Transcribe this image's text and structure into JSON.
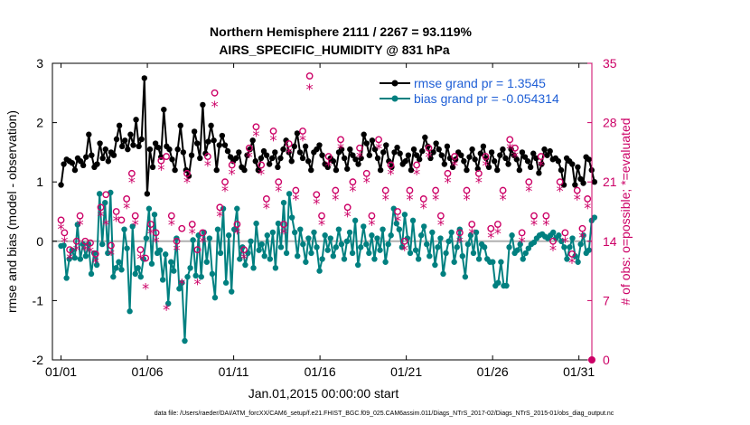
{
  "chart_data": {
    "type": "line",
    "title_line1": "Northern Hemisphere 2111 / 2267 = 93.119%",
    "title_line2": "AIRS_SPECIFIC_HUMIDITY @ 831 hPa",
    "xlabel": "Jan.01,2015 00:00:00 start",
    "ylabel": "rmse and bias (model - observation)",
    "ylabel_right": "# of obs: o=possible; *=evaluated",
    "footnote": "data file: /Users/raeder/DAI/ATM_forcXX/CAM6_setup/f.e21.FHIST_BGC.f09_025.CAM6assim.011/Diags_NTrS_2017-02/Diags_NTrS_2015-01/obs_diag_output.nc",
    "xlim": [
      0.5,
      31.75
    ],
    "ylim": [
      -2,
      3
    ],
    "ylim_right": [
      0,
      35
    ],
    "x_ticks": [
      1,
      6,
      11,
      16,
      21,
      26,
      31
    ],
    "x_tick_labels": [
      "01/01",
      "01/06",
      "01/11",
      "01/16",
      "01/21",
      "01/26",
      "01/31"
    ],
    "y_ticks": [
      -2,
      -1,
      0,
      1,
      2,
      3
    ],
    "y_tick_labels": [
      "-2",
      "-1",
      "0",
      "1",
      "2",
      "3"
    ],
    "y_right_ticks": [
      0,
      7,
      14,
      21,
      28,
      35
    ],
    "y_right_tick_labels": [
      "0",
      "7",
      "14",
      "21",
      "28",
      "35"
    ],
    "series": [
      {
        "name": "rmse",
        "legend": "rmse grand pr = 1.3545",
        "color": "#000000",
        "values": [
          0.95,
          1.3,
          1.38,
          1.35,
          1.32,
          1.2,
          1.4,
          1.35,
          1.28,
          1.42,
          1.8,
          1.45,
          1.25,
          1.3,
          1.65,
          1.4,
          1.55,
          1.35,
          1.5,
          1.45,
          1.72,
          1.95,
          1.6,
          1.7,
          1.55,
          1.8,
          1.62,
          2.05,
          1.6,
          1.72,
          2.75,
          0.8,
          1.55,
          1.25,
          1.65,
          1.58,
          1.42,
          2.22,
          1.6,
          1.55,
          1.38,
          1.2,
          1.55,
          1.95,
          1.5,
          1.2,
          1.1,
          1.45,
          1.85,
          1.65,
          1.4,
          2.3,
          1.48,
          1.68,
          1.95,
          1.7,
          1.2,
          1.62,
          1.78,
          1.62,
          1.52,
          1.42,
          1.35,
          1.4,
          1.5,
          1.25,
          1.2,
          1.45,
          1.55,
          1.7,
          1.35,
          1.2,
          1.4,
          1.52,
          1.45,
          1.3,
          1.4,
          1.5,
          1.25,
          1.4,
          1.55,
          1.7,
          1.5,
          1.35,
          1.6,
          1.82,
          1.5,
          1.4,
          1.6,
          1.35,
          1.2,
          1.5,
          1.55,
          1.62,
          1.45,
          1.3,
          1.25,
          1.4,
          1.35,
          1.2,
          1.5,
          1.55,
          1.4,
          1.22,
          1.55,
          1.45,
          1.38,
          1.3,
          1.4,
          1.8,
          1.65,
          1.45,
          1.7,
          1.55,
          1.4,
          1.2,
          1.5,
          1.62,
          1.35,
          1.25,
          1.5,
          1.58,
          1.48,
          1.3,
          1.35,
          1.45,
          1.2,
          1.55,
          1.45,
          1.38,
          1.52,
          1.75,
          1.6,
          1.4,
          1.5,
          1.65,
          1.55,
          1.45,
          1.3,
          1.6,
          1.4,
          1.25,
          1.38,
          1.5,
          1.45,
          1.35,
          1.2,
          1.42,
          1.55,
          1.38,
          1.22,
          1.48,
          1.6,
          1.4,
          1.25,
          1.5,
          1.35,
          1.2,
          1.45,
          1.55,
          1.4,
          1.3,
          1.55,
          1.45,
          1.38,
          1.2,
          1.5,
          1.42,
          1.35,
          1.25,
          1.48,
          1.4,
          1.15,
          1.3,
          1.55,
          1.45,
          1.52,
          1.38,
          1.4,
          1.35,
          1.2,
          0.95,
          1.4,
          1.35,
          1.3,
          0.95,
          1.25,
          1.05,
          0.98,
          1.42,
          1.38,
          1.2,
          1.0
        ],
        "values_note": "daily-ish samples, 6-hourly cadence; see x"
      },
      {
        "name": "bias",
        "legend": "bias grand pr = -0.054314",
        "color": "#008080",
        "values": [
          -0.08,
          -0.07,
          -0.62,
          -0.3,
          -0.15,
          -0.28,
          0.28,
          -0.3,
          -0.05,
          -0.25,
          -0.05,
          -0.55,
          -0.2,
          -0.4,
          0.8,
          -0.05,
          0.65,
          -0.2,
          0.82,
          -0.6,
          -0.45,
          -0.35,
          -0.48,
          0.2,
          -0.12,
          -1.18,
          0.25,
          -0.55,
          -0.45,
          -0.6,
          -0.3,
          0.05,
          0.55,
          -0.38,
          0.45,
          -0.2,
          -0.15,
          -0.65,
          -0.22,
          -1.05,
          -0.35,
          -0.5,
          0.05,
          -0.8,
          -0.7,
          -1.68,
          -0.6,
          -0.45,
          0.02,
          -0.58,
          0.1,
          -0.6,
          0.15,
          -0.35,
          0.05,
          -0.55,
          -0.95,
          0.2,
          -0.2,
          0.55,
          -0.7,
          0.1,
          -0.85,
          0.2,
          0.55,
          -0.3,
          -0.1,
          -0.4,
          -0.2,
          0.0,
          -0.45,
          0.3,
          -0.15,
          -0.05,
          -0.25,
          0.1,
          -0.3,
          0.15,
          -0.45,
          0.3,
          -0.1,
          0.65,
          -0.2,
          0.8,
          0.4,
          0.15,
          -0.25,
          0.2,
          -0.05,
          -0.35,
          0.05,
          -0.2,
          0.15,
          -0.1,
          -0.5,
          -0.3,
          0.1,
          -0.15,
          0.05,
          -0.25,
          -0.1,
          0.2,
          -0.05,
          -0.3,
          0.0,
          0.15,
          -0.2,
          0.35,
          -0.4,
          -0.1,
          0.25,
          -0.05,
          -0.2,
          0.1,
          -0.3,
          0.05,
          -0.15,
          0.2,
          -0.35,
          -0.05,
          0.1,
          0.55,
          0.3,
          0.2,
          -0.1,
          0.45,
          0.05,
          -0.2,
          0.35,
          -0.15,
          -0.3,
          0.1,
          0.25,
          -0.05,
          -0.25,
          0.15,
          -0.4,
          -0.1,
          0.05,
          -0.55,
          -0.2,
          0.0,
          0.15,
          -0.35,
          -0.1,
          0.2,
          -0.25,
          -0.6,
          -0.05,
          0.1,
          -0.2,
          0.15,
          -0.3,
          -0.05,
          -0.1,
          -0.3,
          -0.35,
          -0.35,
          -0.75,
          -0.7,
          -0.35,
          -0.75,
          -0.75,
          -0.1,
          0.1,
          -0.2,
          -0.15,
          -0.05,
          -0.3,
          -0.2,
          -0.12,
          -0.05,
          -0.02,
          0.05,
          0.1,
          0.12,
          0.08,
          0.05,
          0.1,
          0.15,
          0.05,
          0.1,
          0.0,
          -0.1,
          -0.3,
          -0.1,
          0.05,
          -0.25,
          -0.35,
          -0.05,
          0.1,
          -0.2,
          -0.15,
          0.35,
          0.4
        ]
      }
    ],
    "obs_possible": {
      "marker": "o",
      "color": "#cc0066",
      "points": [
        [
          1.0,
          16.5
        ],
        [
          1.2,
          15
        ],
        [
          1.5,
          13
        ],
        [
          1.9,
          14
        ],
        [
          2.1,
          17
        ],
        [
          2.4,
          14
        ],
        [
          2.7,
          13.8
        ],
        [
          3.0,
          12.5
        ],
        [
          3.3,
          18
        ],
        [
          3.6,
          19.5
        ],
        [
          3.9,
          13.5
        ],
        [
          4.2,
          17.5
        ],
        [
          4.5,
          16.5
        ],
        [
          4.8,
          19
        ],
        [
          5.1,
          22
        ],
        [
          5.3,
          17
        ],
        [
          5.6,
          13
        ],
        [
          5.9,
          12
        ],
        [
          6.2,
          16
        ],
        [
          6.5,
          15
        ],
        [
          6.8,
          23.5
        ],
        [
          7.1,
          24
        ],
        [
          7.4,
          17
        ],
        [
          7.7,
          14
        ],
        [
          8.0,
          15.5
        ],
        [
          8.3,
          22
        ],
        [
          8.6,
          16
        ],
        [
          8.9,
          13
        ],
        [
          9.2,
          15
        ],
        [
          9.5,
          24
        ],
        [
          9.9,
          31.5
        ],
        [
          10.2,
          18
        ],
        [
          10.5,
          21
        ],
        [
          10.9,
          23
        ],
        [
          11.2,
          16
        ],
        [
          11.6,
          13
        ],
        [
          11.9,
          25
        ],
        [
          12.3,
          27.5
        ],
        [
          12.6,
          23
        ],
        [
          12.9,
          19
        ],
        [
          13.3,
          27
        ],
        [
          13.6,
          21
        ],
        [
          13.9,
          16
        ],
        [
          14.2,
          25.5
        ],
        [
          14.6,
          20
        ],
        [
          15.0,
          27
        ],
        [
          15.4,
          33.5
        ],
        [
          15.8,
          19.5
        ],
        [
          16.1,
          17
        ],
        [
          16.5,
          24
        ],
        [
          16.9,
          20
        ],
        [
          17.2,
          26
        ],
        [
          17.6,
          18
        ],
        [
          17.9,
          21
        ],
        [
          18.3,
          25
        ],
        [
          18.7,
          22
        ],
        [
          19.0,
          17
        ],
        [
          19.4,
          26
        ],
        [
          19.8,
          20
        ],
        [
          20.1,
          23
        ],
        [
          20.5,
          17.5
        ],
        [
          20.9,
          14
        ],
        [
          21.2,
          20
        ],
        [
          21.6,
          23
        ],
        [
          22.0,
          19
        ],
        [
          22.3,
          25
        ],
        [
          22.7,
          20
        ],
        [
          23.0,
          17
        ],
        [
          23.4,
          22
        ],
        [
          23.8,
          24
        ],
        [
          24.1,
          15
        ],
        [
          24.5,
          20
        ],
        [
          24.8,
          16
        ],
        [
          25.2,
          22
        ],
        [
          25.6,
          24
        ],
        [
          25.9,
          15.5
        ],
        [
          26.3,
          16
        ],
        [
          26.6,
          20
        ],
        [
          27.0,
          26
        ],
        [
          27.3,
          25
        ],
        [
          27.7,
          15
        ],
        [
          28.1,
          21
        ],
        [
          28.4,
          17
        ],
        [
          28.8,
          24
        ],
        [
          29.1,
          17
        ],
        [
          29.5,
          14
        ],
        [
          29.9,
          21
        ],
        [
          30.2,
          15
        ],
        [
          30.6,
          12.5
        ],
        [
          30.9,
          20
        ],
        [
          31.2,
          15.5
        ],
        [
          31.5,
          19
        ]
      ]
    },
    "obs_evaluated": {
      "marker": "*",
      "color": "#cc0066",
      "points": [
        [
          1.0,
          15.5
        ],
        [
          1.2,
          14
        ],
        [
          1.5,
          12
        ],
        [
          1.9,
          13
        ],
        [
          2.1,
          16
        ],
        [
          2.4,
          13
        ],
        [
          2.7,
          12.8
        ],
        [
          3.0,
          11.5
        ],
        [
          3.3,
          17
        ],
        [
          3.6,
          16
        ],
        [
          3.9,
          12.5
        ],
        [
          4.2,
          16.5
        ],
        [
          4.8,
          18
        ],
        [
          5.1,
          21
        ],
        [
          5.3,
          16
        ],
        [
          5.6,
          12
        ],
        [
          5.9,
          8.5
        ],
        [
          6.2,
          15
        ],
        [
          6.5,
          14
        ],
        [
          6.8,
          22.5
        ],
        [
          7.1,
          6
        ],
        [
          7.4,
          16
        ],
        [
          7.7,
          13
        ],
        [
          8.0,
          9
        ],
        [
          8.3,
          21
        ],
        [
          8.6,
          15
        ],
        [
          8.9,
          9
        ],
        [
          9.2,
          14
        ],
        [
          9.5,
          23
        ],
        [
          9.9,
          30
        ],
        [
          10.2,
          17
        ],
        [
          10.5,
          20
        ],
        [
          10.9,
          22
        ],
        [
          11.2,
          15
        ],
        [
          11.6,
          12
        ],
        [
          11.9,
          24
        ],
        [
          12.3,
          26.5
        ],
        [
          12.6,
          22
        ],
        [
          12.9,
          18
        ],
        [
          13.3,
          26
        ],
        [
          13.6,
          20
        ],
        [
          13.9,
          15
        ],
        [
          14.2,
          24.5
        ],
        [
          14.6,
          19
        ],
        [
          15.0,
          26
        ],
        [
          15.4,
          32
        ],
        [
          15.8,
          18.5
        ],
        [
          16.1,
          16
        ],
        [
          16.5,
          23
        ],
        [
          16.9,
          19
        ],
        [
          17.2,
          25
        ],
        [
          17.6,
          17
        ],
        [
          17.9,
          20
        ],
        [
          18.3,
          24
        ],
        [
          18.7,
          21
        ],
        [
          19.0,
          16
        ],
        [
          19.4,
          25
        ],
        [
          19.8,
          19
        ],
        [
          20.1,
          22
        ],
        [
          20.5,
          16.5
        ],
        [
          20.9,
          13
        ],
        [
          21.2,
          19
        ],
        [
          21.6,
          22
        ],
        [
          22.0,
          18
        ],
        [
          22.3,
          24
        ],
        [
          22.7,
          19
        ],
        [
          23.0,
          16
        ],
        [
          23.4,
          21
        ],
        [
          23.8,
          23
        ],
        [
          24.1,
          14
        ],
        [
          24.5,
          19
        ],
        [
          24.8,
          15
        ],
        [
          25.2,
          21
        ],
        [
          25.6,
          23
        ],
        [
          25.9,
          14.5
        ],
        [
          26.3,
          15
        ],
        [
          26.6,
          19
        ],
        [
          27.0,
          25
        ],
        [
          27.3,
          24
        ],
        [
          27.7,
          14
        ],
        [
          28.1,
          20
        ],
        [
          28.4,
          16
        ],
        [
          28.8,
          23
        ],
        [
          29.1,
          16
        ],
        [
          29.5,
          13
        ],
        [
          29.9,
          20
        ],
        [
          30.2,
          14
        ],
        [
          30.6,
          11.5
        ],
        [
          30.9,
          19
        ],
        [
          31.2,
          14.5
        ],
        [
          31.5,
          18
        ]
      ]
    },
    "zero_line": 0,
    "zero_line_color": "#b0b0b0",
    "legend_text_color": "#1f5fd6"
  }
}
